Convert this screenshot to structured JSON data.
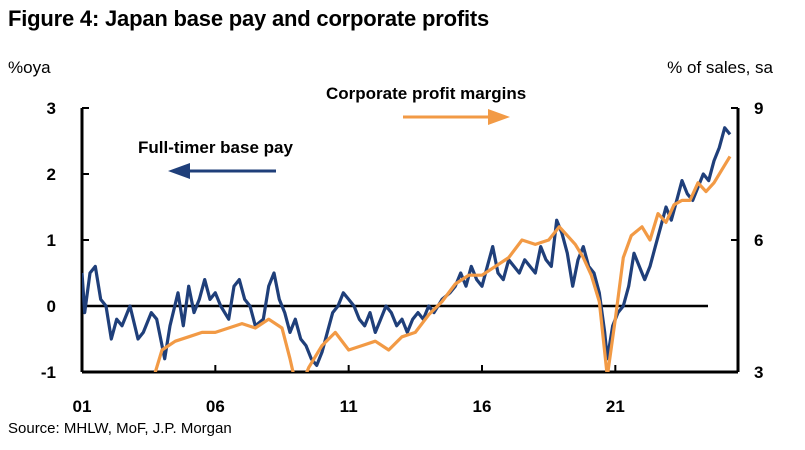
{
  "chart_data": {
    "type": "line",
    "title": "Figure 4: Japan base pay and corporate profits",
    "ylabel_left": "%oya",
    "ylabel_right": "% of sales, sa",
    "source": "Source: MHLW, MoF, J.P. Morgan",
    "x_ticks": [
      {
        "label": "01",
        "year": 2001
      },
      {
        "label": "06",
        "year": 2006
      },
      {
        "label": "11",
        "year": 2011
      },
      {
        "label": "16",
        "year": 2016
      },
      {
        "label": "21",
        "year": 2021
      }
    ],
    "xlim": [
      2001,
      2025.6
    ],
    "ylim_left": [
      -1,
      3
    ],
    "ylim_right": [
      3,
      9
    ],
    "y_ticks_left": [
      "-1",
      "0",
      "1",
      "2",
      "3"
    ],
    "y_ticks_right": [
      "3",
      "6",
      "9"
    ],
    "colors": {
      "base_pay": "#1f3f7a",
      "profit": "#f29a45",
      "zero_line": "#000000"
    },
    "annotations": {
      "base_pay": "Full-timer base pay",
      "profit": "Corporate profit margins"
    },
    "series": [
      {
        "name": "Full-timer base pay",
        "axis": "left",
        "color": "#1f3f7a",
        "points": [
          [
            2001.0,
            0.5
          ],
          [
            2001.1,
            -0.1
          ],
          [
            2001.3,
            0.5
          ],
          [
            2001.5,
            0.6
          ],
          [
            2001.7,
            0.1
          ],
          [
            2001.9,
            0.0
          ],
          [
            2002.1,
            -0.5
          ],
          [
            2002.3,
            -0.2
          ],
          [
            2002.5,
            -0.3
          ],
          [
            2002.8,
            0.0
          ],
          [
            2003.1,
            -0.5
          ],
          [
            2003.3,
            -0.4
          ],
          [
            2003.6,
            -0.1
          ],
          [
            2003.8,
            -0.2
          ],
          [
            2004.1,
            -0.8
          ],
          [
            2004.3,
            -0.3
          ],
          [
            2004.6,
            0.2
          ],
          [
            2004.8,
            -0.3
          ],
          [
            2005.0,
            0.3
          ],
          [
            2005.2,
            -0.1
          ],
          [
            2005.4,
            0.1
          ],
          [
            2005.6,
            0.4
          ],
          [
            2005.8,
            0.1
          ],
          [
            2006.0,
            0.2
          ],
          [
            2006.2,
            0.0
          ],
          [
            2006.5,
            -0.2
          ],
          [
            2006.7,
            0.3
          ],
          [
            2006.9,
            0.4
          ],
          [
            2007.1,
            0.1
          ],
          [
            2007.3,
            0.0
          ],
          [
            2007.5,
            -0.3
          ],
          [
            2007.8,
            -0.2
          ],
          [
            2008.0,
            0.3
          ],
          [
            2008.2,
            0.5
          ],
          [
            2008.4,
            0.1
          ],
          [
            2008.6,
            -0.1
          ],
          [
            2008.8,
            -0.4
          ],
          [
            2009.0,
            -0.2
          ],
          [
            2009.2,
            -0.5
          ],
          [
            2009.4,
            -0.6
          ],
          [
            2009.6,
            -0.8
          ],
          [
            2009.8,
            -0.9
          ],
          [
            2010.0,
            -0.7
          ],
          [
            2010.2,
            -0.4
          ],
          [
            2010.4,
            -0.1
          ],
          [
            2010.6,
            0.0
          ],
          [
            2010.8,
            0.2
          ],
          [
            2011.0,
            0.1
          ],
          [
            2011.2,
            0.0
          ],
          [
            2011.4,
            -0.2
          ],
          [
            2011.6,
            -0.3
          ],
          [
            2011.8,
            -0.1
          ],
          [
            2012.0,
            -0.4
          ],
          [
            2012.2,
            -0.2
          ],
          [
            2012.4,
            0.0
          ],
          [
            2012.6,
            -0.1
          ],
          [
            2012.8,
            -0.3
          ],
          [
            2013.0,
            -0.2
          ],
          [
            2013.2,
            -0.4
          ],
          [
            2013.4,
            -0.2
          ],
          [
            2013.6,
            -0.1
          ],
          [
            2013.8,
            -0.2
          ],
          [
            2014.0,
            0.0
          ],
          [
            2014.2,
            -0.1
          ],
          [
            2014.5,
            0.1
          ],
          [
            2014.8,
            0.2
          ],
          [
            2015.0,
            0.3
          ],
          [
            2015.2,
            0.5
          ],
          [
            2015.4,
            0.3
          ],
          [
            2015.6,
            0.6
          ],
          [
            2015.8,
            0.4
          ],
          [
            2016.0,
            0.3
          ],
          [
            2016.2,
            0.6
          ],
          [
            2016.4,
            0.9
          ],
          [
            2016.6,
            0.5
          ],
          [
            2016.8,
            0.4
          ],
          [
            2017.0,
            0.7
          ],
          [
            2017.2,
            0.6
          ],
          [
            2017.4,
            0.5
          ],
          [
            2017.6,
            0.7
          ],
          [
            2017.8,
            0.6
          ],
          [
            2018.0,
            0.5
          ],
          [
            2018.2,
            0.9
          ],
          [
            2018.4,
            0.7
          ],
          [
            2018.6,
            0.6
          ],
          [
            2018.8,
            1.3
          ],
          [
            2019.0,
            1.1
          ],
          [
            2019.2,
            0.8
          ],
          [
            2019.4,
            0.3
          ],
          [
            2019.6,
            0.7
          ],
          [
            2019.8,
            0.9
          ],
          [
            2020.0,
            0.6
          ],
          [
            2020.2,
            0.5
          ],
          [
            2020.4,
            0.2
          ],
          [
            2020.6,
            -0.4
          ],
          [
            2020.7,
            -0.8
          ],
          [
            2020.9,
            -0.3
          ],
          [
            2021.1,
            -0.1
          ],
          [
            2021.3,
            0.0
          ],
          [
            2021.5,
            0.3
          ],
          [
            2021.7,
            0.8
          ],
          [
            2021.9,
            0.6
          ],
          [
            2022.1,
            0.4
          ],
          [
            2022.3,
            0.6
          ],
          [
            2022.5,
            0.9
          ],
          [
            2022.7,
            1.2
          ],
          [
            2022.9,
            1.5
          ],
          [
            2023.1,
            1.3
          ],
          [
            2023.3,
            1.6
          ],
          [
            2023.5,
            1.9
          ],
          [
            2023.7,
            1.7
          ],
          [
            2023.9,
            1.6
          ],
          [
            2024.1,
            1.8
          ],
          [
            2024.3,
            2.0
          ],
          [
            2024.5,
            1.9
          ],
          [
            2024.7,
            2.2
          ],
          [
            2024.9,
            2.4
          ],
          [
            2025.1,
            2.7
          ],
          [
            2025.3,
            2.6
          ]
        ]
      },
      {
        "name": "Corporate profit margins",
        "axis": "right",
        "color": "#f29a45",
        "points": [
          [
            2003.5,
            2.5
          ],
          [
            2004.0,
            3.5
          ],
          [
            2004.5,
            3.7
          ],
          [
            2005.0,
            3.8
          ],
          [
            2005.5,
            3.9
          ],
          [
            2006.0,
            3.9
          ],
          [
            2006.5,
            4.0
          ],
          [
            2007.0,
            4.1
          ],
          [
            2007.5,
            4.0
          ],
          [
            2008.0,
            4.2
          ],
          [
            2008.5,
            4.0
          ],
          [
            2008.8,
            3.3
          ],
          [
            2009.1,
            2.5
          ],
          [
            2009.5,
            3.1
          ],
          [
            2010.0,
            3.6
          ],
          [
            2010.5,
            3.9
          ],
          [
            2011.0,
            3.5
          ],
          [
            2011.5,
            3.6
          ],
          [
            2012.0,
            3.7
          ],
          [
            2012.5,
            3.5
          ],
          [
            2013.0,
            3.8
          ],
          [
            2013.5,
            3.9
          ],
          [
            2014.0,
            4.3
          ],
          [
            2014.5,
            4.6
          ],
          [
            2015.0,
            5.0
          ],
          [
            2015.5,
            5.2
          ],
          [
            2016.0,
            5.2
          ],
          [
            2016.5,
            5.4
          ],
          [
            2017.0,
            5.6
          ],
          [
            2017.5,
            6.0
          ],
          [
            2018.0,
            5.9
          ],
          [
            2018.5,
            6.0
          ],
          [
            2018.9,
            6.3
          ],
          [
            2019.2,
            6.1
          ],
          [
            2019.5,
            5.9
          ],
          [
            2019.8,
            5.6
          ],
          [
            2020.1,
            5.2
          ],
          [
            2020.4,
            4.6
          ],
          [
            2020.7,
            2.9
          ],
          [
            2021.0,
            4.2
          ],
          [
            2021.3,
            5.6
          ],
          [
            2021.6,
            6.1
          ],
          [
            2022.0,
            6.3
          ],
          [
            2022.3,
            6.0
          ],
          [
            2022.6,
            6.6
          ],
          [
            2022.9,
            6.4
          ],
          [
            2023.2,
            6.8
          ],
          [
            2023.5,
            6.9
          ],
          [
            2023.8,
            6.9
          ],
          [
            2024.1,
            7.3
          ],
          [
            2024.4,
            7.1
          ],
          [
            2024.7,
            7.3
          ],
          [
            2025.0,
            7.6
          ],
          [
            2025.3,
            7.9
          ]
        ]
      }
    ]
  }
}
